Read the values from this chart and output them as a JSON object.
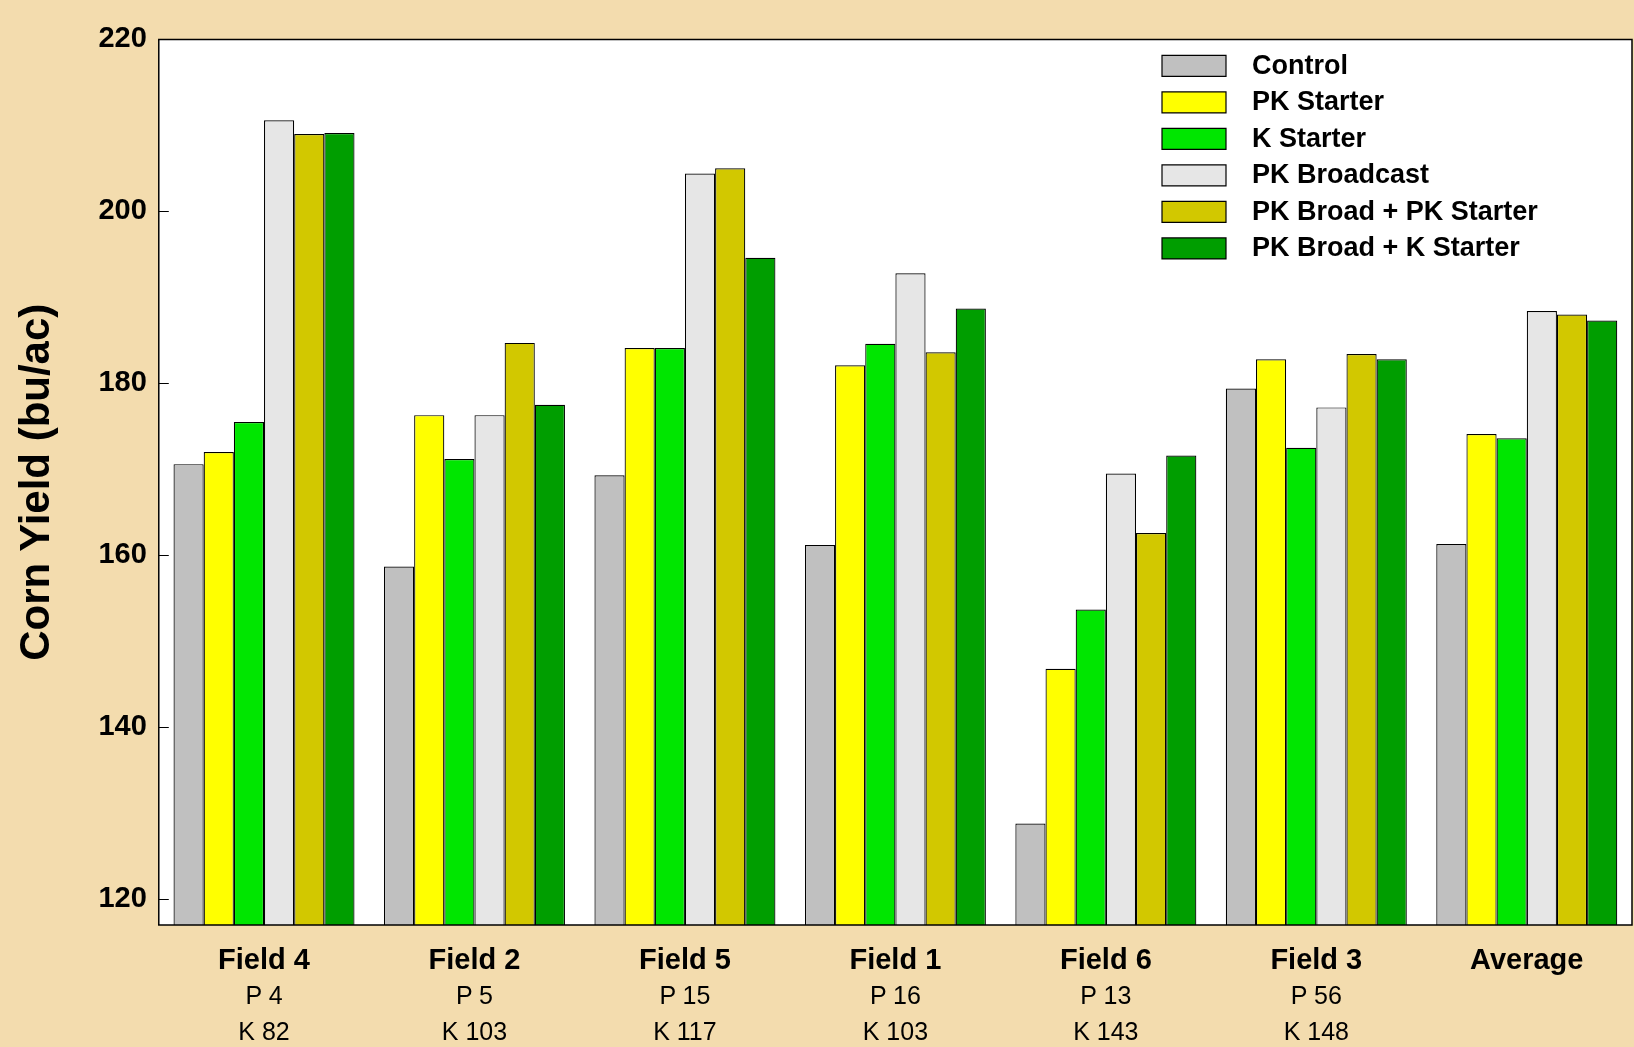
{
  "chart_data": {
    "type": "bar",
    "ylabel": "Corn Yield (bu/ac)",
    "categories": [
      "Field 4\nP 4\nK 82",
      "Field 2\nP 5\nK 103",
      "Field 5\nP 15\nK 117",
      "Field 1\nP 16\nK 103",
      "Field 6\nP 13\nK 143",
      "Field 3\nP 56\nK 148",
      "Average"
    ],
    "series": [
      {
        "name": "Control",
        "color": "#c0c0c0",
        "values": [
          170.6,
          158.7,
          169.3,
          161.2,
          128.8,
          179.4,
          161.3
        ]
      },
      {
        "name": "PK Starter",
        "color": "#ffff00",
        "values": [
          172.0,
          176.3,
          184.1,
          182.1,
          146.8,
          182.8,
          174.1
        ]
      },
      {
        "name": "K Starter",
        "color": "#00e600",
        "values": [
          175.5,
          171.2,
          184.1,
          184.6,
          153.7,
          172.5,
          173.6
        ]
      },
      {
        "name": "PK Broadcast",
        "color": "#e6e6e6",
        "values": [
          210.6,
          176.3,
          204.4,
          192.8,
          169.5,
          177.2,
          188.4
        ]
      },
      {
        "name": "PK Broad + PK Starter",
        "color": "#d2c800",
        "values": [
          209.0,
          184.7,
          205.0,
          183.6,
          162.6,
          183.4,
          188.0
        ]
      },
      {
        "name": "PK Broad + K Starter",
        "color": "#009e00",
        "values": [
          209.1,
          177.5,
          194.6,
          188.7,
          171.6,
          182.8,
          187.3
        ]
      }
    ],
    "ylim": [
      117,
      220
    ],
    "yticks": [
      120,
      140,
      160,
      180,
      200,
      220
    ],
    "grid": false,
    "legend": "top right"
  }
}
